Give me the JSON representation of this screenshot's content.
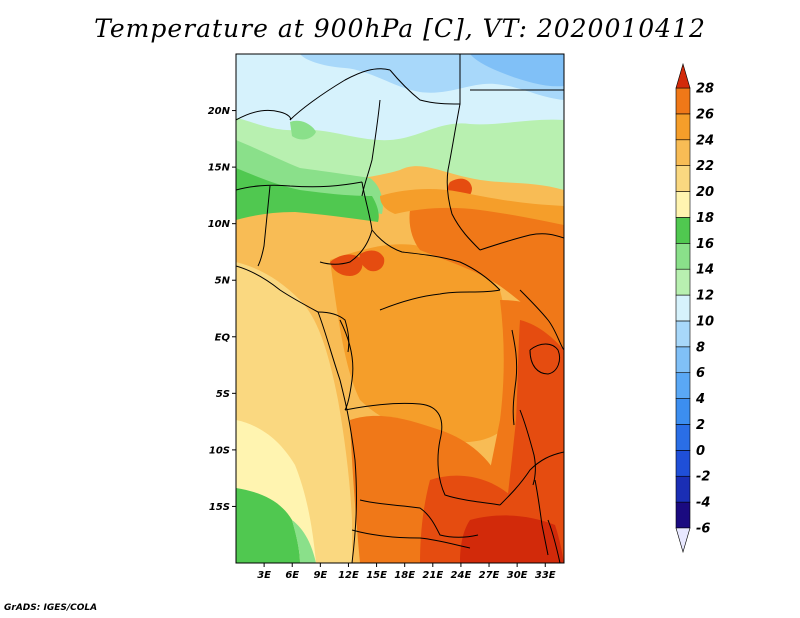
{
  "title": "Temperature at 900hPa [C], VT: 2020010412",
  "credit": "GrADS: IGES/COLA",
  "map": {
    "lon_range": [
      0,
      35
    ],
    "lat_range": [
      -20,
      25
    ],
    "y_ticks": [
      {
        "lat": 20,
        "label": "20N"
      },
      {
        "lat": 15,
        "label": "15N"
      },
      {
        "lat": 10,
        "label": "10N"
      },
      {
        "lat": 5,
        "label": "5N"
      },
      {
        "lat": 0,
        "label": "EQ"
      },
      {
        "lat": -5,
        "label": "5S"
      },
      {
        "lat": -10,
        "label": "10S"
      },
      {
        "lat": -15,
        "label": "15S"
      }
    ],
    "x_ticks": [
      {
        "lon": 3,
        "label": "3E"
      },
      {
        "lon": 6,
        "label": "6E"
      },
      {
        "lon": 9,
        "label": "9E"
      },
      {
        "lon": 12,
        "label": "12E"
      },
      {
        "lon": 15,
        "label": "15E"
      },
      {
        "lon": 18,
        "label": "18E"
      },
      {
        "lon": 21,
        "label": "21E"
      },
      {
        "lon": 24,
        "label": "24E"
      },
      {
        "lon": 27,
        "label": "27E"
      },
      {
        "lon": 30,
        "label": "30E"
      },
      {
        "lon": 33,
        "label": "33E"
      }
    ]
  },
  "colorbar": {
    "unit": "C",
    "levels": [
      {
        "value": -6,
        "label": "-6",
        "color": "#1a0a80"
      },
      {
        "value": -4,
        "label": "-4",
        "color": "#1a2eb5"
      },
      {
        "value": -2,
        "label": "-2",
        "color": "#1f4fd8"
      },
      {
        "value": 0,
        "label": "0",
        "color": "#2a6ee6"
      },
      {
        "value": 2,
        "label": "2",
        "color": "#3c8ef0"
      },
      {
        "value": 4,
        "label": "4",
        "color": "#5aa8f5"
      },
      {
        "value": 6,
        "label": "6",
        "color": "#80c0f7"
      },
      {
        "value": 8,
        "label": "8",
        "color": "#a8d8fa"
      },
      {
        "value": 10,
        "label": "10",
        "color": "#d6f2fc"
      },
      {
        "value": 12,
        "label": "12",
        "color": "#b8f0b0"
      },
      {
        "value": 14,
        "label": "14",
        "color": "#8ae08a"
      },
      {
        "value": 16,
        "label": "16",
        "color": "#50c850"
      },
      {
        "value": 18,
        "label": "18",
        "color": "#fff4b0"
      },
      {
        "value": 20,
        "label": "20",
        "color": "#fad880"
      },
      {
        "value": 22,
        "label": "22",
        "color": "#f8bc55"
      },
      {
        "value": 24,
        "label": "24",
        "color": "#f59e2a"
      },
      {
        "value": 26,
        "label": "26",
        "color": "#f07818"
      },
      {
        "value": 28,
        "label": "28",
        "color": "#e54c10"
      }
    ],
    "under_color": "#e8e8ff",
    "over_color": "#d22a0a"
  },
  "field_colors": {
    "cold_north": "#a8d8fa",
    "very_cold": "#80c0f7",
    "cool_north": "#d6f2fc",
    "light_green": "#b8f0b0",
    "mid_green": "#8ae08a",
    "dark_green": "#50c850",
    "pale_yellow": "#fff4b0",
    "light_orange": "#fad880",
    "mid_orange": "#f8bc55",
    "orange": "#f59e2a",
    "dark_orange": "#f07818",
    "red_orange": "#e54c10",
    "red": "#d22a0a"
  }
}
